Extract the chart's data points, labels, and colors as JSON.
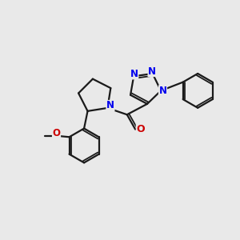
{
  "background_color": "#e9e9e9",
  "line_color": "#1a1a1a",
  "nitrogen_color": "#0000ee",
  "oxygen_color": "#cc0000",
  "bond_width": 1.6,
  "font_size_atom": 8.5,
  "fig_width": 3.0,
  "fig_height": 3.0,
  "dpi": 100,
  "xlim": [
    0,
    10
  ],
  "ylim": [
    0,
    10
  ]
}
